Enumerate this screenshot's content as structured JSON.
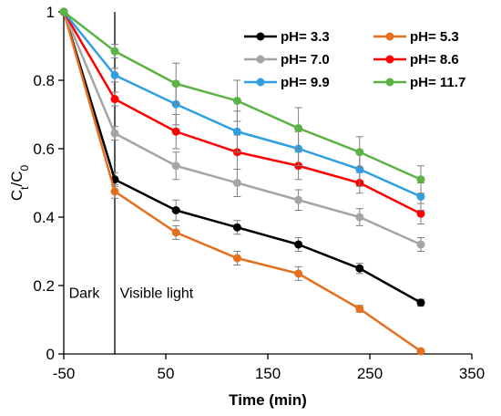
{
  "chart_data": {
    "type": "line",
    "title": "",
    "xlabel": "Time (min)",
    "ylabel": {
      "main": "C",
      "sub1": "t",
      "sep": "/C",
      "sub2": "0"
    },
    "xlim": [
      -50,
      350
    ],
    "ylim": [
      0,
      1
    ],
    "xticks": [
      -50,
      50,
      150,
      250,
      350
    ],
    "yticks": [
      0,
      0.2,
      0.4,
      0.6,
      0.8,
      1
    ],
    "ytick_labels": [
      "0",
      "0.2",
      "0.4",
      "0.6",
      "0.8",
      "1"
    ],
    "grid": false,
    "legend_placement": "top-right",
    "annotations": [
      {
        "text": "Dark",
        "x": -45,
        "y": 0.18
      },
      {
        "text": "Visible light",
        "x": 5,
        "y": 0.18
      }
    ],
    "divider_x": 0,
    "x": [
      -50,
      0,
      60,
      120,
      180,
      240,
      300
    ],
    "series": [
      {
        "name": "pH= 3.3",
        "color": "#000000",
        "values": [
          1.0,
          0.51,
          0.42,
          0.37,
          0.32,
          0.25,
          0.15
        ],
        "errors": [
          0,
          0.02,
          0.03,
          0.02,
          0.02,
          0.015,
          0.01
        ]
      },
      {
        "name": "pH= 5.3",
        "color": "#E56F1E",
        "values": [
          1.0,
          0.475,
          0.355,
          0.28,
          0.235,
          0.132,
          0.008
        ],
        "errors": [
          0,
          0.02,
          0.02,
          0.02,
          0.02,
          0.01,
          0.005
        ]
      },
      {
        "name": "pH= 7.0",
        "color": "#A5A5A5",
        "values": [
          1.0,
          0.645,
          0.55,
          0.5,
          0.45,
          0.4,
          0.32
        ],
        "errors": [
          0,
          0.02,
          0.04,
          0.04,
          0.03,
          0.025,
          0.02
        ]
      },
      {
        "name": "pH= 8.6",
        "color": "#FF0000",
        "values": [
          1.0,
          0.745,
          0.65,
          0.59,
          0.55,
          0.5,
          0.41
        ],
        "errors": [
          0,
          0.02,
          0.05,
          0.05,
          0.04,
          0.03,
          0.03
        ]
      },
      {
        "name": "pH= 9.9",
        "color": "#2F9FE0",
        "values": [
          1.0,
          0.815,
          0.73,
          0.65,
          0.6,
          0.54,
          0.46
        ],
        "errors": [
          0,
          0.02,
          0.06,
          0.06,
          0.05,
          0.05,
          0.04
        ]
      },
      {
        "name": "pH= 11.7",
        "color": "#5DB246",
        "values": [
          1.0,
          0.885,
          0.79,
          0.74,
          0.66,
          0.59,
          0.51
        ],
        "errors": [
          0,
          0.02,
          0.06,
          0.06,
          0.06,
          0.045,
          0.04
        ]
      }
    ]
  }
}
